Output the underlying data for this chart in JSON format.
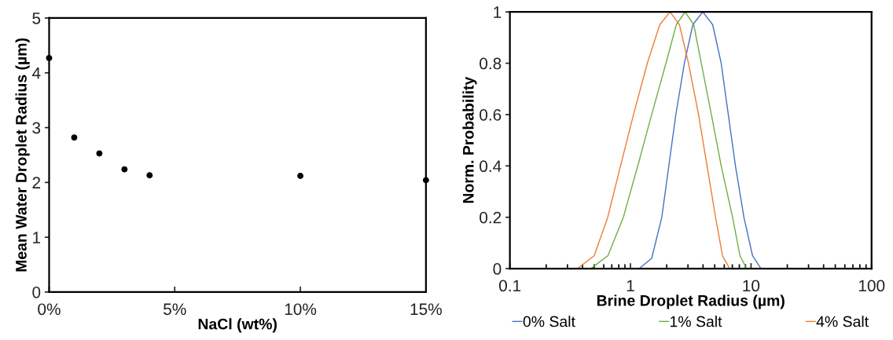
{
  "chart_data": [
    {
      "type": "scatter",
      "xlabel": "NaCl (wt%)",
      "ylabel": "Mean Water Droplet Radius (µm)",
      "marker": "circle",
      "x": [
        0,
        1,
        2,
        3,
        4,
        10,
        15
      ],
      "values": [
        4.27,
        2.82,
        2.53,
        2.24,
        2.13,
        2.12,
        2.04
      ],
      "color": "#000000",
      "xlim": [
        0,
        15
      ],
      "xticks": [
        {
          "value": 0,
          "label": "0%"
        },
        {
          "value": 5,
          "label": "5%"
        },
        {
          "value": 10,
          "label": "10%"
        },
        {
          "value": 15,
          "label": "15%"
        }
      ],
      "ylim": [
        0,
        5
      ],
      "yticks": [
        0,
        1,
        2,
        3,
        4,
        5
      ],
      "grid": false
    },
    {
      "type": "line",
      "xlabel": "Brine Droplet Radius (µm)",
      "ylabel": "Norm. Probability",
      "log": "x",
      "legend": "bottom",
      "grid": false,
      "xlim": [
        0.1,
        100
      ],
      "xticks": [
        0.1,
        1,
        10,
        100
      ],
      "ylim": [
        0,
        1
      ],
      "yticks": [
        0,
        0.2,
        0.4,
        0.6,
        0.8,
        1
      ],
      "series": [
        {
          "name": "0% Salt",
          "color": "#4472c4",
          "x": [
            0.1,
            1.18,
            1.5,
            1.82,
            2.08,
            2.38,
            2.8,
            3.29,
            3.98,
            4.81,
            5.66,
            6.48,
            7.43,
            8.73,
            10.3,
            12.1,
            100
          ],
          "values": [
            0,
            0,
            0.04,
            0.2,
            0.4,
            0.6,
            0.8,
            0.95,
            1,
            0.95,
            0.8,
            0.6,
            0.4,
            0.2,
            0.05,
            0,
            0
          ]
        },
        {
          "name": "1% Salt",
          "color": "#70ad47",
          "x": [
            0.1,
            0.469,
            0.65,
            0.873,
            1.15,
            1.5,
            1.97,
            2.4,
            2.84,
            3.35,
            3.87,
            4.69,
            5.66,
            7.03,
            8.1,
            9.2,
            100
          ],
          "values": [
            0,
            0,
            0.05,
            0.2,
            0.4,
            0.6,
            0.8,
            0.95,
            1,
            0.95,
            0.8,
            0.6,
            0.4,
            0.2,
            0.05,
            0,
            0
          ]
        },
        {
          "name": "4% Salt",
          "color": "#ed7d31",
          "x": [
            0.1,
            0.363,
            0.5,
            0.648,
            0.827,
            1.06,
            1.38,
            1.75,
            2.13,
            2.55,
            3.03,
            3.67,
            4.32,
            5.08,
            5.8,
            6.66,
            100
          ],
          "values": [
            0,
            0,
            0.05,
            0.2,
            0.4,
            0.6,
            0.8,
            0.95,
            1,
            0.95,
            0.8,
            0.6,
            0.4,
            0.2,
            0.05,
            0,
            0
          ]
        }
      ]
    }
  ]
}
